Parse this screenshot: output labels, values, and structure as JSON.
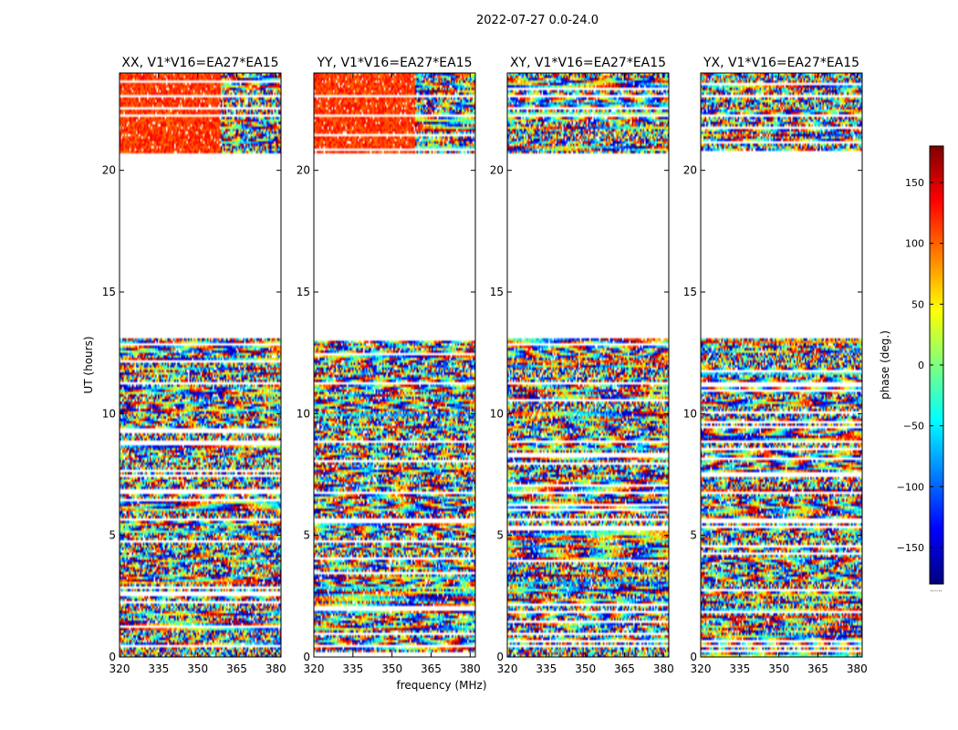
{
  "chart_data": {
    "type": "heatmap",
    "suptitle": "2022-07-27 0.0-24.0",
    "xlabel": "frequency (MHz)",
    "ylabel": "UT (hours)",
    "xlim": [
      320,
      382
    ],
    "ylim": [
      0,
      24
    ],
    "xticks": [
      320,
      335,
      350,
      365,
      380
    ],
    "yticks": [
      0,
      5,
      10,
      15,
      20
    ],
    "panels": [
      {
        "title": "XX, V1*V16=EA27*EA15",
        "seed": 11,
        "red_bias": 0.6
      },
      {
        "title": "YY, V1*V16=EA27*EA15",
        "seed": 23,
        "red_bias": 0.6
      },
      {
        "title": "XY, V1*V16=EA27*EA15",
        "seed": 37,
        "red_bias": 0.0
      },
      {
        "title": "YX, V1*V16=EA27*EA15",
        "seed": 51,
        "red_bias": 0.0
      }
    ],
    "data_gaps_hours": [
      [
        13.1,
        20.7
      ],
      [
        0.35,
        0.55
      ],
      [
        6.65,
        6.8
      ],
      [
        1.45,
        1.55
      ],
      [
        2.55,
        2.65
      ],
      [
        5.6,
        5.7
      ],
      [
        8.85,
        8.95
      ],
      [
        11.2,
        11.3
      ],
      [
        22.2,
        22.35
      ],
      [
        23.0,
        23.1
      ]
    ],
    "colorbar": {
      "label": "phase (deg.)",
      "range": [
        -180,
        180
      ],
      "ticks": [
        150,
        100,
        50,
        0,
        -50,
        -100,
        -150
      ],
      "colors": [
        "#00007f",
        "#0000ff",
        "#007fff",
        "#00ffff",
        "#7fff7f",
        "#ffff00",
        "#ff7f00",
        "#ff0000",
        "#7f0000"
      ],
      "footer": "......"
    }
  }
}
